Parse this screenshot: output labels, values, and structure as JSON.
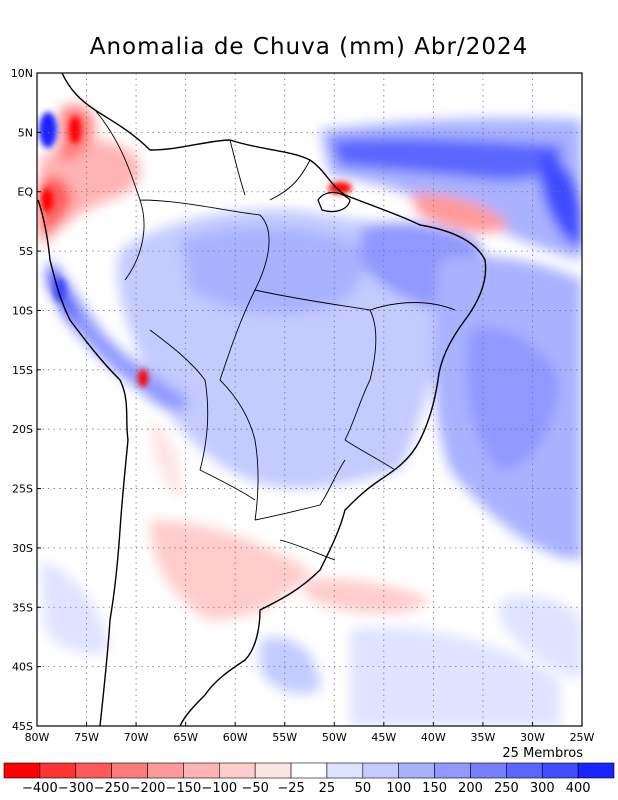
{
  "title": "Anomalia de Chuva (mm) Abr/2024",
  "members_label": "25 Membros",
  "lat_labels": [
    "10N",
    "5N",
    "EQ",
    "5S",
    "10S",
    "15S",
    "20S",
    "25S",
    "30S",
    "35S",
    "40S",
    "45S"
  ],
  "lon_labels": [
    "80W",
    "75W",
    "70W",
    "65W",
    "60W",
    "55W",
    "50W",
    "45W",
    "40W",
    "35W",
    "30W",
    "25W"
  ],
  "colorbar": {
    "colors": [
      "#ff0000",
      "#ff3333",
      "#ff5a5a",
      "#ff7b7b",
      "#ff9a9a",
      "#ffb4b4",
      "#ffcccc",
      "#ffe4e4",
      "#ffffff",
      "#dfe3ff",
      "#c4cbff",
      "#a9b2ff",
      "#8f99ff",
      "#7580ff",
      "#5a66ff",
      "#3f4cff",
      "#1a24ff"
    ],
    "labels": [
      "-400",
      "-300",
      "-250",
      "-200",
      "-150",
      "-100",
      "-50",
      "-25",
      "25",
      "50",
      "100",
      "150",
      "200",
      "250",
      "300",
      "400"
    ]
  },
  "icons": [
    "country-borders",
    "state-borders"
  ]
}
